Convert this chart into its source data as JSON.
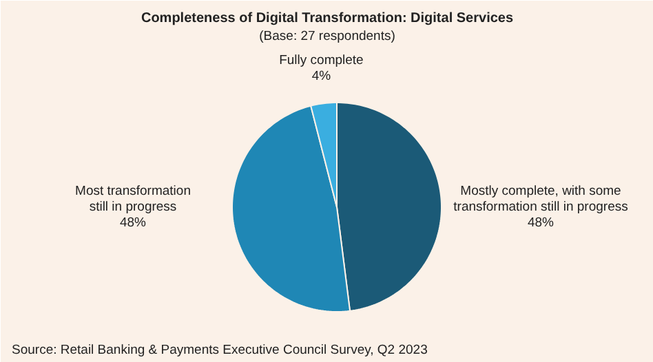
{
  "chart_data": {
    "type": "pie",
    "title": "Completeness of Digital Transformation: Digital Services",
    "subtitle": "(Base: 27 respondents)",
    "categories": [
      "Mostly complete, with some\ntransformation still in progress",
      "Most transformation\nstill in progress",
      "Fully complete"
    ],
    "values": [
      48,
      48,
      4
    ],
    "colors": [
      "#1b5a77",
      "#1f87b5",
      "#3aaee0"
    ],
    "value_labels": [
      "48%",
      "48%",
      "4%"
    ],
    "annotations": [
      "Source: Retail Banking & Payments Executive Council Survey, Q2 2023"
    ]
  }
}
